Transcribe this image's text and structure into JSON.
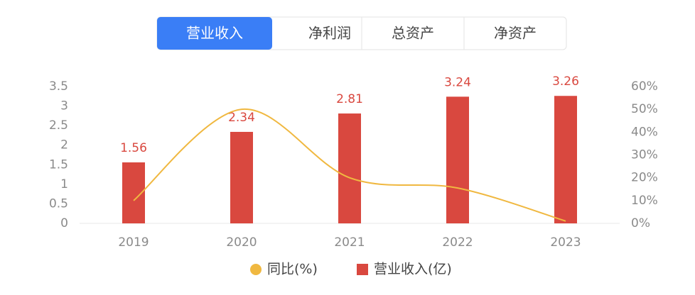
{
  "tabs": [
    "营业收入",
    "净利润",
    "总资产",
    "净资产"
  ],
  "chart_data": {
    "type": "bar",
    "categories": [
      "2019",
      "2020",
      "2021",
      "2022",
      "2023"
    ],
    "series": [
      {
        "name": "同比(%)",
        "type": "line",
        "color": "#f0b840",
        "axis": "y2",
        "values": [
          10,
          50,
          20,
          15.5,
          1
        ]
      },
      {
        "name": "营业收入(亿)",
        "type": "bar",
        "color": "#d9483f",
        "values": [
          1.56,
          2.34,
          2.81,
          3.24,
          3.26
        ]
      }
    ],
    "ylim": [
      0,
      3.5
    ],
    "yticks": [
      0,
      0.5,
      1,
      1.5,
      2,
      2.5,
      3,
      3.5
    ],
    "y2lim": [
      0,
      60
    ],
    "y2ticks": [
      {
        "value": 0,
        "label": "0%"
      },
      {
        "value": 10,
        "label": "10%"
      },
      {
        "value": 20,
        "label": "20%"
      },
      {
        "value": 30,
        "label": "30%"
      },
      {
        "value": 40,
        "label": "40%"
      },
      {
        "value": 50,
        "label": "50%"
      },
      {
        "value": 60,
        "label": "60%"
      }
    ],
    "grid": false
  }
}
